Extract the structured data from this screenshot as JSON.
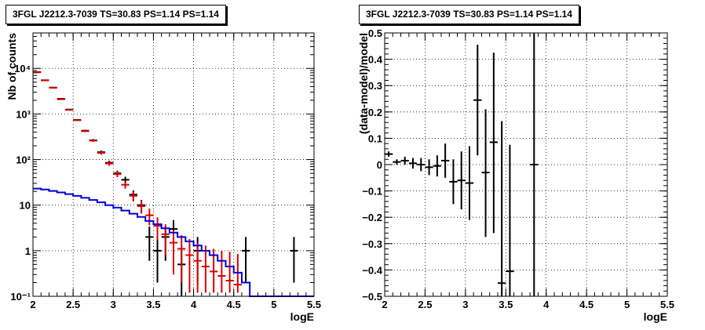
{
  "chart_data": [
    {
      "type": "scatter",
      "title": "3FGL J2212.3-7039 TS=30.83 PS=1.14 PS=1.14",
      "xlabel": "logE",
      "ylabel": "Nb of counts",
      "xlim": [
        2,
        5.5
      ],
      "ylim": [
        0.1,
        60000
      ],
      "yscale": "log",
      "grid": true,
      "x_ticks": [
        "2",
        "2.5",
        "3",
        "3.5",
        "4",
        "4.5",
        "5",
        "5.5"
      ],
      "y_ticks": [
        "10⁻¹",
        "1",
        "10",
        "10²",
        "10³",
        "10⁴"
      ],
      "bin_width": 0.1,
      "series": [
        {
          "color": "#000000",
          "style": "points",
          "points": [
            {
              "x": 2.05,
              "y": 8300,
              "lo": 8210,
              "hi": 8390
            },
            {
              "x": 2.15,
              "y": 5500,
              "lo": 5430,
              "hi": 5570
            },
            {
              "x": 2.25,
              "y": 3800,
              "lo": 3740,
              "hi": 3860
            },
            {
              "x": 2.35,
              "y": 2150,
              "lo": 2100,
              "hi": 2200
            },
            {
              "x": 2.45,
              "y": 1250,
              "lo": 1215,
              "hi": 1285
            },
            {
              "x": 2.55,
              "y": 740,
              "lo": 713,
              "hi": 767
            },
            {
              "x": 2.65,
              "y": 430,
              "lo": 410,
              "hi": 450
            },
            {
              "x": 2.75,
              "y": 265,
              "lo": 249,
              "hi": 281
            },
            {
              "x": 2.85,
              "y": 145,
              "lo": 133,
              "hi": 157
            },
            {
              "x": 2.95,
              "y": 85,
              "lo": 76,
              "hi": 94
            },
            {
              "x": 3.05,
              "y": 50,
              "lo": 43,
              "hi": 57
            },
            {
              "x": 3.15,
              "y": 36,
              "lo": 30,
              "hi": 42
            },
            {
              "x": 3.25,
              "y": 17,
              "lo": 13,
              "hi": 21
            },
            {
              "x": 3.35,
              "y": 10,
              "lo": 7,
              "hi": 13
            },
            {
              "x": 3.45,
              "y": 2,
              "lo": 0.6,
              "hi": 3.4
            },
            {
              "x": 3.55,
              "y": 1,
              "lo": 0.2,
              "hi": 2
            },
            {
              "x": 3.65,
              "y": 2,
              "lo": 0.6,
              "hi": 3.4
            },
            {
              "x": 3.75,
              "y": 3,
              "lo": 1.3,
              "hi": 4.7
            },
            {
              "x": 3.85,
              "y": 0.5,
              "lo": 0.1,
              "hi": 1.2
            },
            {
              "x": 4.05,
              "y": 1,
              "lo": 0.2,
              "hi": 2
            },
            {
              "x": 4.65,
              "y": 1,
              "lo": 0.2,
              "hi": 2
            },
            {
              "x": 5.25,
              "y": 1,
              "lo": 0.2,
              "hi": 2
            }
          ]
        },
        {
          "color": "#dd0000",
          "style": "points",
          "points": [
            {
              "x": 2.05,
              "y": 8200,
              "lo": 8110,
              "hi": 8290
            },
            {
              "x": 2.15,
              "y": 5450,
              "lo": 5380,
              "hi": 5520
            },
            {
              "x": 2.25,
              "y": 3750,
              "lo": 3690,
              "hi": 3810
            },
            {
              "x": 2.35,
              "y": 2100,
              "lo": 2055,
              "hi": 2145
            },
            {
              "x": 2.45,
              "y": 1230,
              "lo": 1195,
              "hi": 1265
            },
            {
              "x": 2.55,
              "y": 730,
              "lo": 703,
              "hi": 757
            },
            {
              "x": 2.65,
              "y": 420,
              "lo": 400,
              "hi": 440
            },
            {
              "x": 2.75,
              "y": 260,
              "lo": 244,
              "hi": 276
            },
            {
              "x": 2.85,
              "y": 140,
              "lo": 128,
              "hi": 152
            },
            {
              "x": 2.95,
              "y": 82,
              "lo": 73,
              "hi": 91
            },
            {
              "x": 3.05,
              "y": 48,
              "lo": 41,
              "hi": 55
            },
            {
              "x": 3.15,
              "y": 28,
              "lo": 23,
              "hi": 33
            },
            {
              "x": 3.25,
              "y": 16,
              "lo": 12,
              "hi": 20
            },
            {
              "x": 3.35,
              "y": 9.5,
              "lo": 6.5,
              "hi": 12.5
            },
            {
              "x": 3.45,
              "y": 6,
              "lo": 3.6,
              "hi": 8.4
            },
            {
              "x": 3.55,
              "y": 3.5,
              "lo": 1.7,
              "hi": 5.4
            },
            {
              "x": 3.65,
              "y": 2.3,
              "lo": 0.8,
              "hi": 3.8
            },
            {
              "x": 3.75,
              "y": 1.5,
              "lo": 0.3,
              "hi": 2.8
            },
            {
              "x": 3.85,
              "y": 1.1,
              "lo": 0.2,
              "hi": 2.2
            },
            {
              "x": 3.95,
              "y": 0.8,
              "lo": 0.12,
              "hi": 1.8
            },
            {
              "x": 4.05,
              "y": 0.6,
              "lo": 0.12,
              "hi": 1.5
            },
            {
              "x": 4.15,
              "y": 0.45,
              "lo": 0.12,
              "hi": 1.3
            },
            {
              "x": 4.25,
              "y": 0.35,
              "lo": 0.12,
              "hi": 1.1
            },
            {
              "x": 4.35,
              "y": 0.28,
              "lo": 0.12,
              "hi": 1.0
            },
            {
              "x": 4.45,
              "y": 0.22,
              "lo": 0.12,
              "hi": 0.95
            },
            {
              "x": 4.55,
              "y": 0.18,
              "lo": 0.12,
              "hi": 0.85
            }
          ]
        },
        {
          "color": "#0000dd",
          "style": "step",
          "values": [
            23,
            22,
            20.5,
            19,
            17.5,
            16,
            14.5,
            13,
            11.5,
            10,
            8.8,
            7.6,
            6.5,
            5.5,
            4.5,
            3.8,
            3.1,
            2.5,
            2.0,
            1.6,
            1.3,
            1.0,
            0.8,
            0.6,
            0.45,
            0.33,
            0.2,
            0.1,
            0.1,
            0.1,
            0.1,
            0.1,
            0.1,
            0.1,
            0.1
          ]
        }
      ]
    },
    {
      "type": "scatter",
      "title": "3FGL J2212.3-7039 TS=30.83 PS=1.14 PS=1.14",
      "xlabel": "logE",
      "ylabel": "(data-model)/model",
      "xlim": [
        2,
        5.5
      ],
      "ylim": [
        -0.5,
        0.5
      ],
      "grid": true,
      "x_ticks": [
        "2",
        "2.5",
        "3",
        "3.5",
        "4",
        "4.5",
        "5",
        "5.5"
      ],
      "y_ticks": [
        "−0.5",
        "−0.4",
        "−0.3",
        "−0.2",
        "−0.1",
        "0",
        "0.1",
        "0.2",
        "0.3",
        "0.4",
        "0.5"
      ],
      "bin_width": 0.1,
      "series": [
        {
          "color": "#000000",
          "style": "points",
          "points": [
            {
              "x": 2.05,
              "y": 0.04,
              "lo": 0.03,
              "hi": 0.05
            },
            {
              "x": 2.15,
              "y": 0.01,
              "lo": 0.0,
              "hi": 0.02
            },
            {
              "x": 2.25,
              "y": 0.015,
              "lo": 0.0,
              "hi": 0.03
            },
            {
              "x": 2.35,
              "y": 0.005,
              "lo": -0.015,
              "hi": 0.025
            },
            {
              "x": 2.45,
              "y": 0.0,
              "lo": -0.025,
              "hi": 0.025
            },
            {
              "x": 2.55,
              "y": -0.01,
              "lo": -0.04,
              "hi": 0.02
            },
            {
              "x": 2.65,
              "y": -0.005,
              "lo": -0.045,
              "hi": 0.035
            },
            {
              "x": 2.75,
              "y": 0.015,
              "lo": -0.05,
              "hi": 0.08
            },
            {
              "x": 2.85,
              "y": -0.065,
              "lo": -0.15,
              "hi": 0.02
            },
            {
              "x": 2.95,
              "y": -0.06,
              "lo": -0.17,
              "hi": 0.05
            },
            {
              "x": 3.05,
              "y": -0.07,
              "lo": -0.21,
              "hi": 0.07
            },
            {
              "x": 3.15,
              "y": 0.245,
              "lo": 0.035,
              "hi": 0.455
            },
            {
              "x": 3.25,
              "y": -0.03,
              "lo": -0.275,
              "hi": 0.21
            },
            {
              "x": 3.35,
              "y": 0.085,
              "lo": -0.26,
              "hi": 0.425
            },
            {
              "x": 3.45,
              "y": -0.45,
              "lo": -0.5,
              "hi": 0.165
            },
            {
              "x": 3.55,
              "y": -0.405,
              "lo": -0.5,
              "hi": 0.075
            },
            {
              "x": 3.85,
              "y": 0.0,
              "lo": -0.5,
              "hi": 0.5
            }
          ]
        }
      ]
    }
  ]
}
